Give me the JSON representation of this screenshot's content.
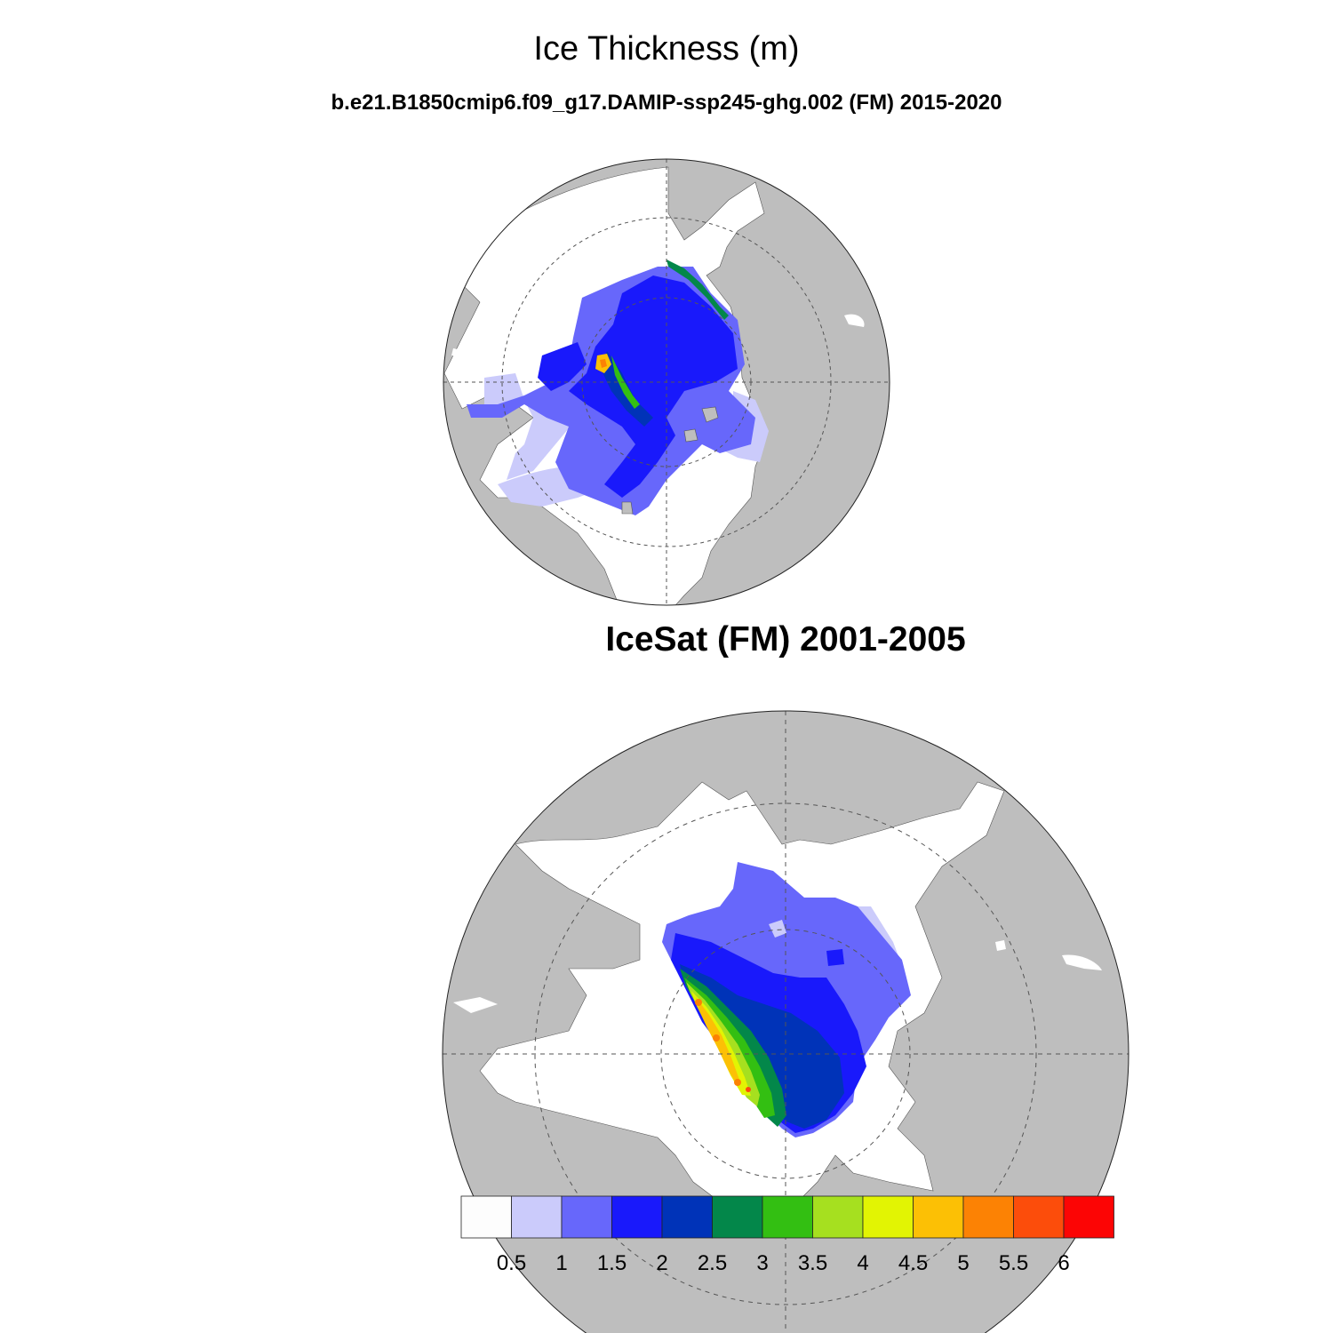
{
  "figure": {
    "title": "Ice Thickness (m)",
    "subtitle": "b.e21.B1850cmip6.f09_g17.DAMIP-ssp245-ghg.002 (FM) 2015-2020"
  },
  "chart_data": [
    {
      "type": "heatmap",
      "projection": "north polar stereographic",
      "title": "b.e21.B1850cmip6.f09_g17.DAMIP-ssp245-ghg.002 (FM) 2015-2020",
      "variable": "Ice Thickness",
      "units": "m",
      "source": "model",
      "value_range_m": [
        0,
        4.5
      ],
      "dominant_range_m": [
        1.5,
        2.0
      ]
    },
    {
      "type": "heatmap",
      "projection": "north polar stereographic",
      "title": "IceSat (FM) 2001-2005",
      "variable": "Ice Thickness",
      "units": "m",
      "source": "observations",
      "value_range_m": [
        0.5,
        6.0
      ],
      "dominant_range_m": [
        1.0,
        2.5
      ]
    }
  ],
  "colorbar": {
    "levels": [
      "0.5",
      "1",
      "1.5",
      "2",
      "2.5",
      "3",
      "3.5",
      "4",
      "4.5",
      "5",
      "5.5",
      "6"
    ],
    "colors": [
      "#fdfdfd",
      "#cbcbfb",
      "#6767fb",
      "#1919fb",
      "#0033b8",
      "#03874a",
      "#33bf12",
      "#a6e01f",
      "#e2f403",
      "#fcc005",
      "#fc8204",
      "#fc4d0b",
      "#fc0505"
    ]
  },
  "colors": {
    "land": "#bebebe",
    "ocean": "#ffffff"
  }
}
